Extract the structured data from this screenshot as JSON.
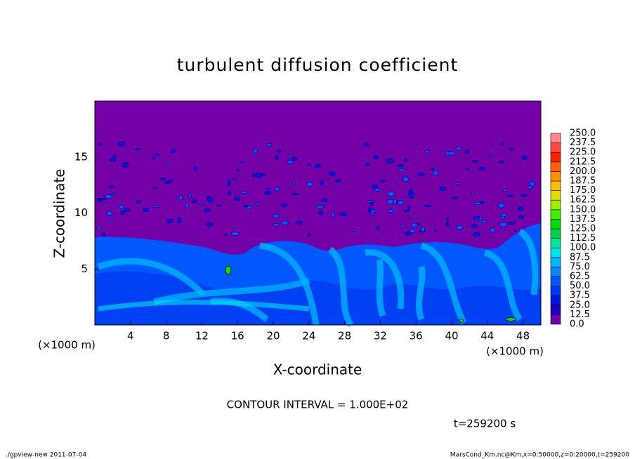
{
  "chart_data": {
    "type": "heatmap",
    "title": "turbulent diffusion coefficient",
    "xlabel": "X-coordinate",
    "ylabel": "Z-coordinate",
    "xunit": "(×1000 m)",
    "yunit": "(×1000 m)",
    "xlim": [
      0,
      50
    ],
    "ylim": [
      0,
      20
    ],
    "xticks": [
      4,
      8,
      12,
      16,
      20,
      24,
      28,
      32,
      36,
      40,
      44,
      48
    ],
    "yticks": [
      5,
      10,
      15
    ],
    "colorbar": {
      "levels": [
        {
          "value": 0,
          "label": "0.0"
        },
        {
          "value": 12.5,
          "label": "12.5"
        },
        {
          "value": 25,
          "label": "25.0"
        },
        {
          "value": 37.5,
          "label": "37.5"
        },
        {
          "value": 50,
          "label": "50.0"
        },
        {
          "value": 62.5,
          "label": "62.5"
        },
        {
          "value": 75,
          "label": "75.0"
        },
        {
          "value": 87.5,
          "label": "87.5"
        },
        {
          "value": 100,
          "label": "100.0"
        },
        {
          "value": 112.5,
          "label": "112.5"
        },
        {
          "value": 125,
          "label": "125.0"
        },
        {
          "value": 137.5,
          "label": "137.5"
        },
        {
          "value": 150,
          "label": "150.0"
        },
        {
          "value": 162.5,
          "label": "162.5"
        },
        {
          "value": 175,
          "label": "175.0"
        },
        {
          "value": 187.5,
          "label": "187.5"
        },
        {
          "value": 200,
          "label": "200.0"
        },
        {
          "value": 212.5,
          "label": "212.5"
        },
        {
          "value": 225,
          "label": "225.0"
        },
        {
          "value": 237.5,
          "label": "237.5"
        },
        {
          "value": 250,
          "label": "250.0"
        }
      ],
      "colors": [
        "#7400a8",
        "#2000c0",
        "#0018dc",
        "#0038f0",
        "#0058ff",
        "#0088ff",
        "#00b8ff",
        "#00e4f0",
        "#00e8a0",
        "#00d050",
        "#00e000",
        "#40f000",
        "#a0f000",
        "#e0e000",
        "#ffc000",
        "#ff9000",
        "#ff6000",
        "#ff2000",
        "#ff4848",
        "#ff8888"
      ]
    },
    "contour_interval": "CONTOUR INTERVAL = 1.000E+02",
    "time_label": "t=259200 s",
    "footer_left": "./gpview-new   2011-07-04",
    "footer_right": "MarsCond_Km.nc@Km,x=0:50000,z=0:20000,t=259200"
  }
}
